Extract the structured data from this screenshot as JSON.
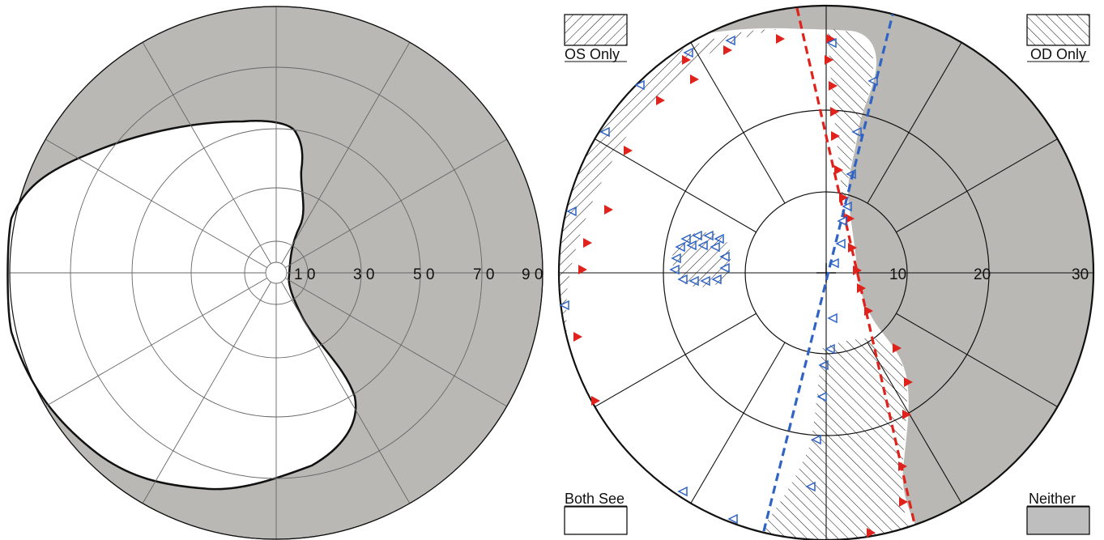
{
  "colors": {
    "background": "#ffffff",
    "field_gray": "#b9b8b4",
    "legend_gray": "#bebebe",
    "grid_line": "#6a6a6a",
    "outline": "#111111",
    "red_marker": "#e0221c",
    "blue_marker": "#2f63c4"
  },
  "left_plot": {
    "tick_labels": [
      "1 0",
      "3 0",
      "5 0",
      "7 0",
      "9 0"
    ]
  },
  "right_plot": {
    "tick_labels": [
      "10",
      "20",
      "30"
    ]
  },
  "legend": {
    "os_only": "OS Only",
    "od_only": "OD Only",
    "both_see": "Both See",
    "neither": "Neither"
  },
  "icons": {
    "red_marker": "filled-triangle-right",
    "blue_marker": "outline-triangle-left"
  }
}
